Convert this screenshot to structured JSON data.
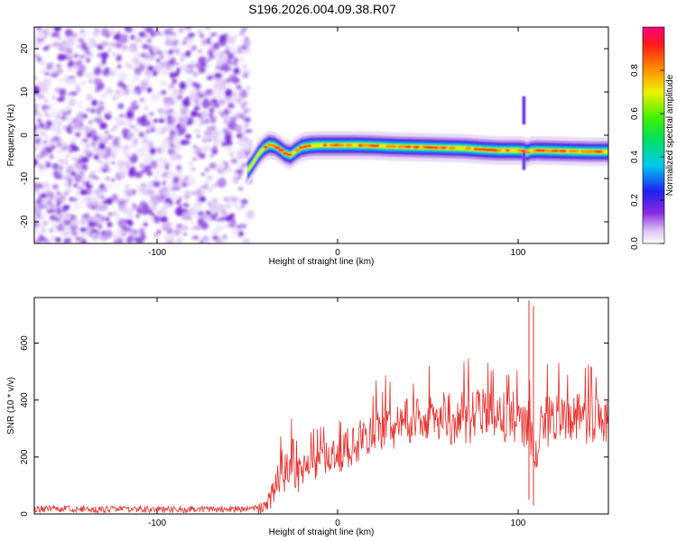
{
  "figure": {
    "title": "S196.2026.004.09.38.R07"
  },
  "chart_data": [
    {
      "type": "heatmap",
      "xlabel": "Height of straight line (km)",
      "ylabel": "Frequency (Hz)",
      "xlim": [
        -168,
        150
      ],
      "ylim": [
        -25,
        25
      ],
      "xticks": [
        -100,
        0,
        100
      ],
      "xtick_labels": [
        "-100",
        "0",
        "100"
      ],
      "yticks": [
        -20,
        -10,
        0,
        10,
        20
      ],
      "ytick_labels": [
        "-20",
        "-10",
        "0",
        "10",
        "20"
      ],
      "noise_region_x": [
        -168,
        -48
      ],
      "signal_ridge": {
        "x": [
          -50,
          -47,
          -44,
          -41,
          -38,
          -35,
          -32,
          -29,
          -26,
          -23,
          -20,
          -15,
          -10,
          -5,
          0,
          10,
          20,
          30,
          40,
          50,
          60,
          70,
          80,
          90,
          100,
          103,
          105,
          107,
          110,
          120,
          130,
          140,
          150
        ],
        "freq": [
          -8.2,
          -6.5,
          -4.5,
          -3.0,
          -2.2,
          -2.4,
          -3.2,
          -4.2,
          -4.6,
          -3.6,
          -2.8,
          -2.4,
          -2.3,
          -2.3,
          -2.3,
          -2.3,
          -2.4,
          -2.6,
          -2.7,
          -2.8,
          -2.9,
          -3.0,
          -3.3,
          -3.5,
          -3.5,
          -3.6,
          -4.0,
          -3.6,
          -3.5,
          -3.6,
          -3.7,
          -3.8,
          -3.8
        ]
      },
      "colorbar": {
        "label": "Normalized spectral amplitude",
        "range": [
          0,
          1
        ],
        "ticks": [
          0.0,
          0.2,
          0.4,
          0.6,
          0.8
        ],
        "tick_labels": [
          "0.0",
          "0.2",
          "0.4",
          "0.6",
          "0.8"
        ],
        "colormap": "rainbow (white-violet-blue-cyan-green-yellow-red-magenta)"
      }
    },
    {
      "type": "line",
      "xlabel": "Height of straight line (km)",
      "ylabel": "SNR (10 * v/v)",
      "xlim": [
        -168,
        150
      ],
      "ylim": [
        0,
        760
      ],
      "xticks": [
        -100,
        0,
        100
      ],
      "xtick_labels": [
        "-100",
        "0",
        "100"
      ],
      "yticks": [
        0,
        200,
        400,
        600
      ],
      "ytick_labels": [
        "0",
        "200",
        "400",
        "600"
      ],
      "series": [
        {
          "color": "#e8302c",
          "x": [
            -168,
            -150,
            -130,
            -110,
            -90,
            -70,
            -50,
            -40,
            -35,
            -30,
            -25,
            -20,
            -15,
            -10,
            -5,
            0,
            10,
            20,
            30,
            40,
            50,
            60,
            70,
            80,
            90,
            100,
            104,
            106,
            108,
            110,
            112,
            120,
            130,
            140,
            150
          ],
          "y": [
            18,
            17,
            16,
            16,
            16,
            17,
            17,
            20,
            80,
            160,
            190,
            150,
            170,
            180,
            200,
            210,
            250,
            290,
            310,
            320,
            330,
            335,
            340,
            345,
            340,
            335,
            320,
            330,
            240,
            200,
            320,
            330,
            330,
            330,
            335
          ]
        }
      ],
      "spikes": [
        {
          "x": 106,
          "y_top": 750,
          "y_bottom": 50
        },
        {
          "x": 108.5,
          "y_top": 730,
          "y_bottom": 30
        }
      ]
    }
  ]
}
